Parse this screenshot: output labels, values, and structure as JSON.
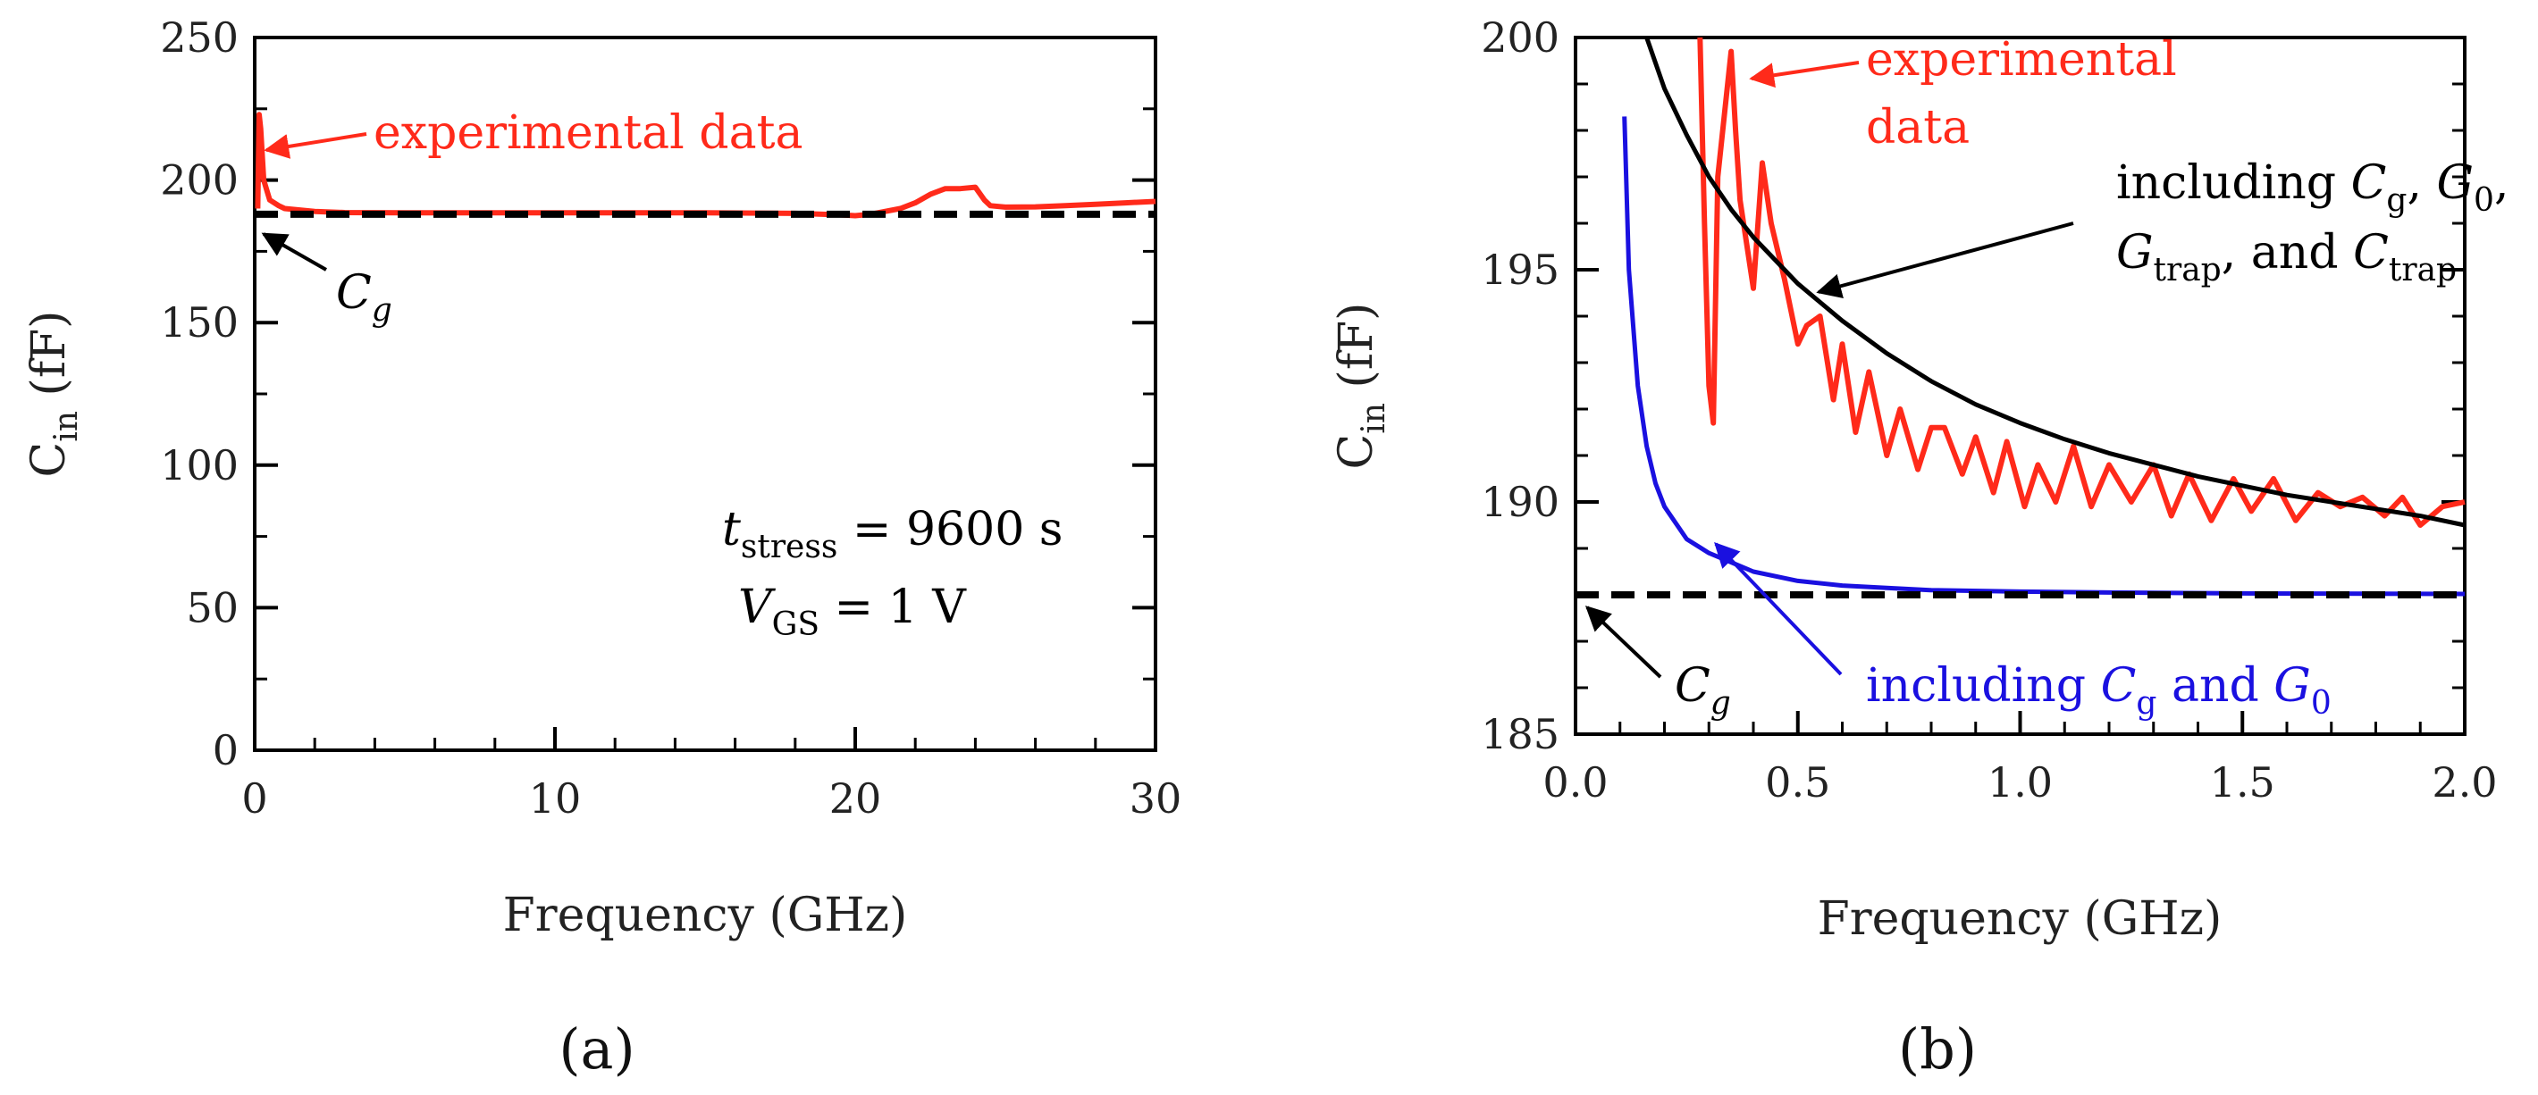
{
  "colors": {
    "experimental": "#ff2a1a",
    "model_full": "#000000",
    "model_simple": "#1a10e0",
    "cg_line": "#000000",
    "axis": "#000000"
  },
  "panels": [
    {
      "label": "(a)",
      "chart_data": {
        "type": "line",
        "xlabel": "Frequency (GHz)",
        "ylabel": "C_in (fF)",
        "ylabel_main": "C",
        "ylabel_sub": "in",
        "ylabel_rest": " (fF)",
        "xlim": [
          0,
          30
        ],
        "ylim": [
          0,
          250
        ],
        "xticks": [
          0,
          10,
          20,
          30
        ],
        "xtick_labels": [
          "0",
          "10",
          "20",
          "30"
        ],
        "yticks": [
          0,
          50,
          100,
          150,
          200,
          250
        ],
        "ytick_labels": [
          "0",
          "50",
          "100",
          "150",
          "200",
          "250"
        ],
        "x_minor_step": 2,
        "y_minor_step": 25,
        "series": [
          {
            "name": "experimental data",
            "style": "experimental",
            "x": [
              0.1,
              0.15,
              0.2,
              0.3,
              0.5,
              0.8,
              1.0,
              1.5,
              2.0,
              3.0,
              5.0,
              8.0,
              12.0,
              15.0,
              18.0,
              19.5,
              20.0,
              20.5,
              21.0,
              21.5,
              22.0,
              22.5,
              23.0,
              23.5,
              24.0,
              24.3,
              24.5,
              25.0,
              26.0,
              27.0,
              28.0,
              29.0,
              30.0
            ],
            "y": [
              190,
              223,
              218,
              200,
              193,
              191,
              190,
              189.5,
              189,
              188.6,
              188.5,
              188.5,
              188.5,
              188.5,
              188.3,
              187.8,
              187.5,
              188.0,
              189.0,
              190.0,
              192.0,
              195.0,
              197.0,
              197.0,
              197.5,
              193.0,
              191.0,
              190.5,
              190.6,
              191.0,
              191.5,
              192.0,
              192.5
            ]
          },
          {
            "name": "C_g",
            "style": "cg",
            "x": [
              0,
              30
            ],
            "y": [
              188,
              188
            ]
          }
        ],
        "annotations": [
          {
            "text": "experimental data",
            "tip": [
              0.2,
              212
            ]
          },
          {
            "text_main": "C",
            "text_sub": "g",
            "tip": [
              0.1,
              188
            ]
          }
        ],
        "conditions": [
          {
            "main": "t",
            "sub": "stress",
            "rest": " = 9600 s"
          },
          {
            "main": "V",
            "sub": "GS",
            "rest": " = 1 V"
          }
        ]
      }
    },
    {
      "label": "(b)",
      "chart_data": {
        "type": "line",
        "xlabel": "Frequency (GHz)",
        "ylabel": "C_in (fF)",
        "ylabel_main": "C",
        "ylabel_sub": "in",
        "ylabel_rest": " (fF)",
        "xlim": [
          0,
          2
        ],
        "ylim": [
          185,
          200
        ],
        "xticks": [
          0,
          0.5,
          1.0,
          1.5,
          2.0
        ],
        "xtick_labels": [
          "0.0",
          "0.5",
          "1.0",
          "1.5",
          "2.0"
        ],
        "yticks": [
          185,
          190,
          195,
          200
        ],
        "ytick_labels": [
          "185",
          "190",
          "195",
          "200"
        ],
        "x_minor_step": 0.1,
        "y_minor_step": 1,
        "series": [
          {
            "name": "experimental data",
            "style": "experimental",
            "x": [
              0.28,
              0.29,
              0.3,
              0.31,
              0.32,
              0.35,
              0.36,
              0.37,
              0.4,
              0.42,
              0.44,
              0.47,
              0.5,
              0.52,
              0.55,
              0.58,
              0.6,
              0.63,
              0.66,
              0.7,
              0.73,
              0.77,
              0.8,
              0.83,
              0.87,
              0.9,
              0.94,
              0.97,
              1.01,
              1.04,
              1.08,
              1.12,
              1.16,
              1.2,
              1.25,
              1.3,
              1.34,
              1.38,
              1.43,
              1.48,
              1.52,
              1.57,
              1.62,
              1.67,
              1.72,
              1.77,
              1.82,
              1.86,
              1.9,
              1.95,
              2.0
            ],
            "y": [
              200,
              196.0,
              192.5,
              191.7,
              197.0,
              199.7,
              198.0,
              196.5,
              194.6,
              197.3,
              196.0,
              194.8,
              193.4,
              193.8,
              194.0,
              192.2,
              193.4,
              191.5,
              192.8,
              191.0,
              192.0,
              190.7,
              191.6,
              191.6,
              190.6,
              191.4,
              190.2,
              191.3,
              189.9,
              190.8,
              190.0,
              191.2,
              189.9,
              190.8,
              190.0,
              190.8,
              189.7,
              190.6,
              189.6,
              190.5,
              189.8,
              190.5,
              189.6,
              190.2,
              189.9,
              190.1,
              189.7,
              190.1,
              189.5,
              189.9,
              190.0
            ]
          },
          {
            "name": "including Cg, G0, Gtrap, and Ctrap",
            "style": "model_full",
            "x": [
              0.16,
              0.2,
              0.25,
              0.3,
              0.35,
              0.4,
              0.5,
              0.6,
              0.7,
              0.8,
              0.9,
              1.0,
              1.1,
              1.2,
              1.3,
              1.4,
              1.5,
              1.6,
              1.7,
              1.8,
              1.9,
              2.0
            ],
            "y": [
              200,
              198.9,
              197.9,
              197.0,
              196.3,
              195.7,
              194.7,
              193.9,
              193.2,
              192.6,
              192.1,
              191.7,
              191.35,
              191.05,
              190.8,
              190.55,
              190.35,
              190.15,
              190.0,
              189.85,
              189.7,
              189.5
            ]
          },
          {
            "name": "including Cg and G0",
            "style": "model_simple",
            "x": [
              0.11,
              0.12,
              0.14,
              0.16,
              0.18,
              0.2,
              0.25,
              0.3,
              0.35,
              0.4,
              0.5,
              0.6,
              0.7,
              0.8,
              1.0,
              1.2,
              1.5,
              2.0
            ],
            "y": [
              198.3,
              195.0,
              192.5,
              191.2,
              190.4,
              189.9,
              189.2,
              188.9,
              188.7,
              188.5,
              188.3,
              188.2,
              188.15,
              188.1,
              188.07,
              188.05,
              188.03,
              188.02
            ]
          },
          {
            "name": "C_g",
            "style": "cg",
            "x": [
              0,
              2
            ],
            "y": [
              188,
              188
            ]
          }
        ],
        "annotations": [
          {
            "lines": [
              "experimental",
              "data"
            ],
            "tip": [
              0.38,
              198.8
            ]
          },
          {
            "text_parts": [
              [
                "including ",
                "C",
                "g",
                ", ",
                "G",
                "0",
                ","
              ],
              [
                "G",
                "trap",
                ", and ",
                "C",
                "trap"
              ]
            ],
            "tip": [
              0.55,
              194.5
            ]
          },
          {
            "text_main": "C",
            "text_sub": "g",
            "tip": [
              0.02,
              188
            ]
          },
          {
            "text_parts": [
              [
                "including ",
                "C",
                "g",
                " and ",
                "G",
                "0"
              ]
            ],
            "tip": [
              0.32,
              189.1
            ]
          }
        ]
      }
    }
  ]
}
